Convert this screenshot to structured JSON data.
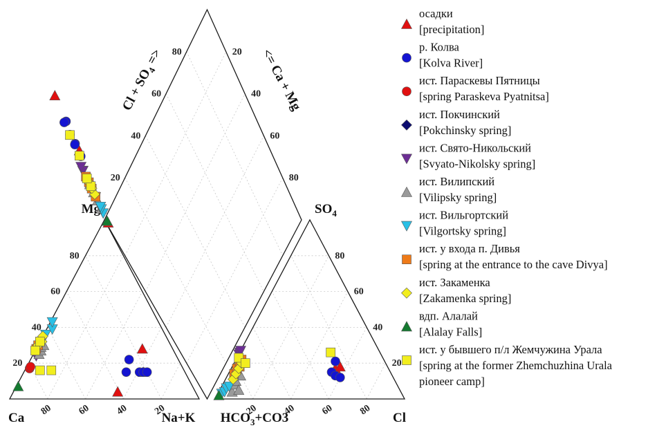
{
  "chart_data": {
    "type": "scatter",
    "subtype": "piper-diagram",
    "cation_triangle": {
      "corner_labels": [
        "Ca",
        "Mg",
        "Na+K"
      ],
      "tick_labels_bottom": [
        "80",
        "60",
        "40",
        "20"
      ],
      "tick_labels_left": [
        "20",
        "40",
        "60",
        "80"
      ]
    },
    "anion_triangle": {
      "corner_labels": [
        "HCO3+CO3",
        "SO4",
        "Cl"
      ],
      "tick_labels_bottom": [
        "20",
        "40",
        "60",
        "80"
      ],
      "tick_labels_right": [
        "20",
        "40",
        "60",
        "80"
      ]
    },
    "diamond": {
      "axis_left": "Cl + SO4 =>",
      "axis_right": "<= Ca + Mg",
      "tick_labels_left": [
        "20",
        "40",
        "60",
        "80"
      ],
      "tick_labels_right": [
        "80",
        "60",
        "40",
        "20"
      ]
    },
    "axis_ranges": {
      "percent": [
        0,
        100
      ]
    },
    "grid": true,
    "legend_position": "right",
    "series": [
      {
        "id": "s1",
        "name_ru": "осадки",
        "name_en": "[precipitation]",
        "marker": "triangle-up",
        "color": "#e01010",
        "cat": [
          [
            22,
            15,
            63
          ],
          [
            16,
            28,
            56
          ],
          [
            41,
            4,
            55
          ]
        ],
        "ani": [
          [
            28,
            17,
            55
          ],
          [
            25,
            18,
            57
          ]
        ],
        "dia": [
          [
            8,
            89
          ],
          [
            56,
            73
          ],
          [
            83,
            72
          ]
        ]
      },
      {
        "id": "s2",
        "name_ru": "р. Колва",
        "name_en": "[Kolva River]",
        "marker": "circle",
        "color": "#1414d2",
        "cat": [
          [
            26,
            22,
            52
          ],
          [
            24,
            15,
            61
          ],
          [
            22,
            15,
            63
          ],
          [
            20,
            15,
            65
          ],
          [
            31,
            15,
            54
          ]
        ],
        "ani": [
          [
            31,
            15,
            54
          ],
          [
            30,
            13,
            57
          ],
          [
            28,
            12,
            60
          ],
          [
            26,
            21,
            53
          ]
        ],
        "dia": [
          [
            69,
            74
          ],
          [
            49,
            78
          ],
          [
            55,
            78
          ],
          [
            52,
            81
          ],
          [
            55,
            83
          ],
          [
            60,
            84
          ]
        ]
      },
      {
        "id": "s3",
        "name_ru": "ист. Параскевы Пятницы",
        "name_en": "[spring Paraskeva Pyatnitsa]",
        "marker": "circle",
        "color": "#e01010",
        "cat": [
          [
            81,
            17,
            2
          ],
          [
            80,
            18,
            2
          ]
        ],
        "ani": [],
        "dia": []
      },
      {
        "id": "s4",
        "name_ru": "ист. Покчинский",
        "name_en": "[Pokchinsky spring]",
        "marker": "diamond",
        "color": "#0c0c70",
        "cat": [],
        "ani": [],
        "dia": []
      },
      {
        "id": "s5",
        "name_ru": "ист. Свято-Никольский",
        "name_en": "[Svyato-Nikolsky spring]",
        "marker": "triangle-down",
        "color": "#6c2e94",
        "cat": [
          [
            74,
            24,
            2
          ],
          [
            73,
            26,
            1
          ],
          [
            72,
            27,
            1
          ]
        ],
        "ani": [
          [
            75,
            25,
            0
          ],
          [
            74,
            26,
            0
          ],
          [
            73,
            27,
            0
          ]
        ],
        "dia": [
          [
            26,
            97
          ],
          [
            25,
            98
          ],
          [
            27,
            98
          ]
        ]
      },
      {
        "id": "s6",
        "name_ru": "ист. Вилипский",
        "name_en": "[Vilipsky spring]",
        "marker": "triangle-up",
        "color": "#9a9a9a",
        "cat": [
          [
            72,
            25,
            3
          ],
          [
            70,
            27,
            3
          ],
          [
            69,
            29,
            2
          ],
          [
            67,
            30,
            3
          ]
        ],
        "ani": [
          [
            89,
            4,
            7
          ],
          [
            86,
            8,
            6
          ],
          [
            84,
            10,
            6
          ],
          [
            80,
            13,
            7
          ],
          [
            85,
            5,
            10
          ]
        ],
        "dia": [
          [
            13,
            91
          ],
          [
            16,
            92
          ],
          [
            19,
            93
          ],
          [
            22,
            94
          ]
        ]
      },
      {
        "id": "s7",
        "name_ru": "ист. Вильгортский",
        "name_en": "[Vilgortsky spring]",
        "marker": "triangle-down",
        "color": "#2ac0e6",
        "cat": [
          [
            63,
            36,
            1
          ],
          [
            58,
            39,
            3
          ],
          [
            56,
            43,
            1
          ]
        ],
        "ani": [
          [
            95,
            3,
            2
          ],
          [
            93,
            4,
            3
          ],
          [
            91,
            6,
            3
          ],
          [
            89,
            7,
            4
          ]
        ],
        "dia": [
          [
            10,
            92
          ],
          [
            12,
            92
          ],
          [
            14,
            91
          ],
          [
            16,
            94
          ]
        ]
      },
      {
        "id": "s8",
        "name_ru": "ист. у входа п. Дивья",
        "name_en": "[spring at the entrance to the cave Divya]",
        "marker": "square",
        "color": "#ee7a18",
        "cat": [
          [
            72,
            28,
            0
          ],
          [
            70,
            30,
            0
          ],
          [
            68,
            32,
            0
          ]
        ],
        "ani": [
          [
            83,
            14,
            3
          ],
          [
            80,
            17,
            3
          ],
          [
            78,
            18,
            4
          ],
          [
            75,
            22,
            3
          ]
        ],
        "dia": [
          [
            17,
            93
          ],
          [
            20,
            94
          ],
          [
            23,
            94
          ],
          [
            24,
            96
          ]
        ]
      },
      {
        "id": "s9",
        "name_ru": "ист. Закаменка",
        "name_en": "[Zakamenka spring]",
        "marker": "diamond",
        "color": "#f2ee1e",
        "cat": [
          [
            70,
            30,
            0
          ],
          [
            67,
            32,
            1
          ],
          [
            65,
            35,
            0
          ]
        ],
        "ani": [
          [
            85,
            11,
            4
          ],
          [
            82,
            14,
            4
          ],
          [
            79,
            17,
            4
          ],
          [
            76,
            20,
            4
          ]
        ],
        "dia": [
          [
            19,
            92
          ],
          [
            21,
            93
          ],
          [
            23,
            94
          ]
        ]
      },
      {
        "id": "s10",
        "name_ru": "вдп. Алалай",
        "name_en": "[Alalay Falls]",
        "marker": "triangle-up",
        "color": "#157a30",
        "cat": [
          [
            92,
            7,
            1
          ]
        ],
        "ani": [
          [
            97,
            2,
            1
          ]
        ],
        "dia": [
          [
            8,
            90
          ]
        ]
      },
      {
        "id": "s11",
        "name_ru": "ист. у бывшего п/л Жемчужина Урала",
        "name_en": "[spring at the former Zhemchuzhina Urala pioneer camp]",
        "marker": "square",
        "color": "#f2ee1e",
        "cat": [
          [
            76,
            16,
            8
          ],
          [
            70,
            16,
            14
          ],
          [
            68,
            32,
            0
          ],
          [
            73,
            27,
            0
          ]
        ],
        "ani": [
          [
            76,
            23,
            1
          ],
          [
            74,
            20,
            6
          ],
          [
            26,
            26,
            48
          ]
        ],
        "dia": [
          [
            45,
            83
          ],
          [
            54,
            84
          ],
          [
            22,
            93
          ],
          [
            24,
            95
          ]
        ]
      }
    ]
  },
  "legend": [
    {
      "text_ru": "осадки",
      "text_en": "[precipitation]"
    },
    {
      "text_ru": "р. Колва",
      "text_en": "[Kolva River]"
    },
    {
      "text_ru": "ист. Параскевы Пятницы",
      "text_en": "[spring Paraskeva Pyatnitsa]"
    },
    {
      "text_ru": "ист. Покчинский",
      "text_en": "[Pokchinsky spring]"
    },
    {
      "text_ru": "ист. Свято-Никольский",
      "text_en": "[Svyato-Nikolsky spring]"
    },
    {
      "text_ru": "ист. Вилипский",
      "text_en": "[Vilipsky spring]"
    },
    {
      "text_ru": "ист. Вильгортский",
      "text_en": "[Vilgortsky spring]"
    },
    {
      "text_ru": "ист. у входа п. Дивья",
      "text_en": "[spring at the entrance to the cave Divya]"
    },
    {
      "text_ru": "ист. Закаменка",
      "text_en": "[Zakamenka spring]"
    },
    {
      "text_ru": "вдп. Алалай",
      "text_en": "[Alalay Falls]"
    },
    {
      "text_ru": "ист. у бывшего п/л Жемчужина Урала",
      "text_en": "[spring at the former Zhemchuzhina Urala",
      "text_en2": "pioneer camp]"
    }
  ]
}
